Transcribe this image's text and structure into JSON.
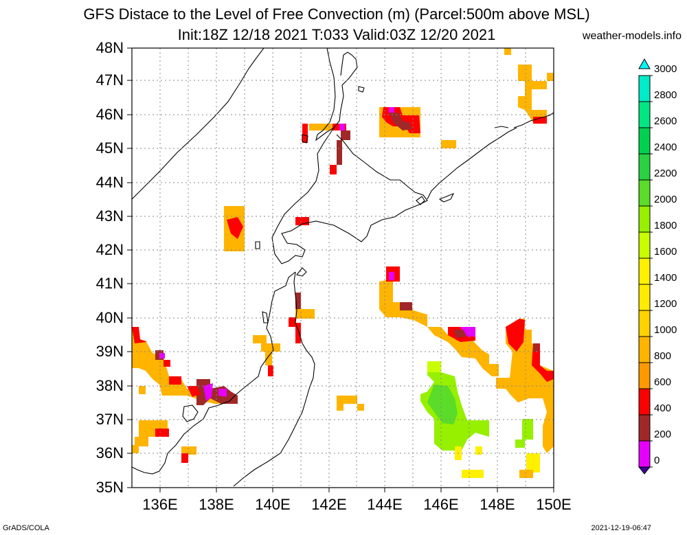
{
  "header": {
    "title_line1": "GFS Distace to the Level of Free Convection (m) (Parcel:500m above MSL)",
    "title_line2": "Init:18Z 12/18 2021 T:033 Valid:03Z 12/20 2021",
    "site": "weather-models.info"
  },
  "footer": {
    "left": "GrADS/COLA",
    "right": "2021-12-19-06:47"
  },
  "map": {
    "lat_labels": [
      "48N",
      "47N",
      "46N",
      "45N",
      "44N",
      "43N",
      "42N",
      "41N",
      "40N",
      "39N",
      "38N",
      "37N",
      "36N",
      "35N"
    ],
    "lon_labels": [
      "136E",
      "138E",
      "140E",
      "142E",
      "144E",
      "146E",
      "148E",
      "150E"
    ],
    "lon_range": [
      135,
      150
    ],
    "lat_range": [
      35,
      48
    ],
    "grid": "dotted"
  },
  "colorbar": {
    "labels": [
      "3000",
      "2800",
      "2600",
      "2400",
      "2200",
      "2000",
      "1800",
      "1600",
      "1400",
      "1200",
      "1000",
      "800",
      "600",
      "400",
      "200",
      "0"
    ],
    "colors_bottom_to_top": [
      "#3c0096",
      "#e600ff",
      "#a02828",
      "#ff0000",
      "#ff9900",
      "#ffb400",
      "#ffd200",
      "#ffeb00",
      "#fff000",
      "#c8ff00",
      "#96f000",
      "#5adc28",
      "#28d241",
      "#00e682",
      "#00ebc8",
      "#00f5f5"
    ]
  }
}
